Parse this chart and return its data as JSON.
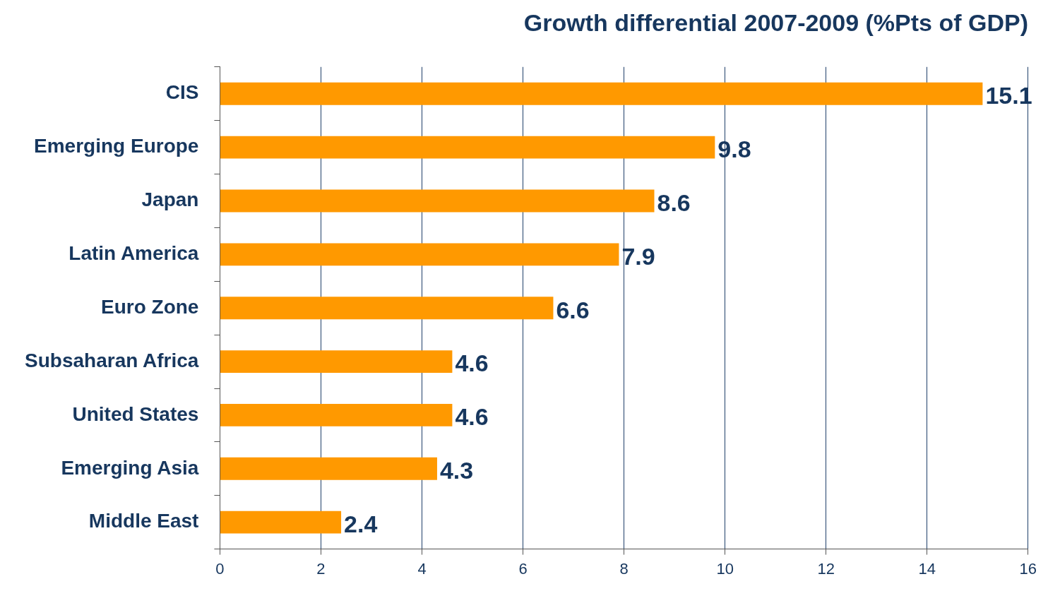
{
  "chart_data": {
    "type": "bar",
    "orientation": "horizontal",
    "title": "Growth differential 2007-2009 (%Pts of GDP)",
    "categories": [
      "CIS",
      "Emerging Europe",
      "Japan",
      "Latin America",
      "Euro Zone",
      "Subsaharan Africa",
      "United States",
      "Emerging Asia",
      "Middle East"
    ],
    "values": [
      15.1,
      9.8,
      8.6,
      7.9,
      6.6,
      4.6,
      4.6,
      4.3,
      2.4
    ],
    "color": "#ff9900",
    "xlim": [
      0,
      16
    ],
    "xticks": [
      0,
      2,
      4,
      6,
      8,
      10,
      12,
      14,
      16
    ],
    "grid": "x",
    "legend": false,
    "data_labels": true
  }
}
